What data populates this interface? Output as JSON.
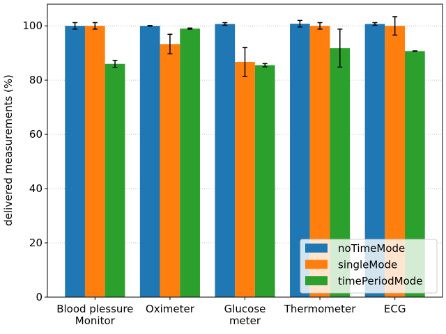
{
  "chart_data": {
    "type": "bar",
    "title": "",
    "xlabel": "",
    "ylabel": "delivered measurements (%)",
    "ylim": [
      0,
      108
    ],
    "yticks": [
      0,
      20,
      40,
      60,
      80,
      100
    ],
    "grid": "horizontal dotted",
    "legend_position": "bottom-right",
    "categories": [
      [
        "Blood plessure",
        "Monitor"
      ],
      [
        "Oximeter"
      ],
      [
        "Glucose",
        "meter"
      ],
      [
        "Thermometer"
      ],
      [
        "ECG"
      ]
    ],
    "series": [
      {
        "name": "noTimeMode",
        "color": "#1f77b4",
        "values": [
          100.0,
          100.0,
          100.7,
          100.8,
          100.7
        ],
        "errors": [
          1.2,
          0.1,
          0.5,
          1.2,
          0.5
        ]
      },
      {
        "name": "singleMode",
        "color": "#ff7f0e",
        "values": [
          100.0,
          93.3,
          86.7,
          100.0,
          100.0
        ],
        "errors": [
          1.2,
          3.6,
          5.3,
          1.2,
          3.4
        ]
      },
      {
        "name": "timePeriodMode",
        "color": "#2ca02c",
        "values": [
          86.0,
          99.0,
          85.5,
          91.8,
          90.7
        ],
        "errors": [
          1.3,
          0.2,
          0.6,
          7.0,
          0.1
        ]
      }
    ]
  }
}
